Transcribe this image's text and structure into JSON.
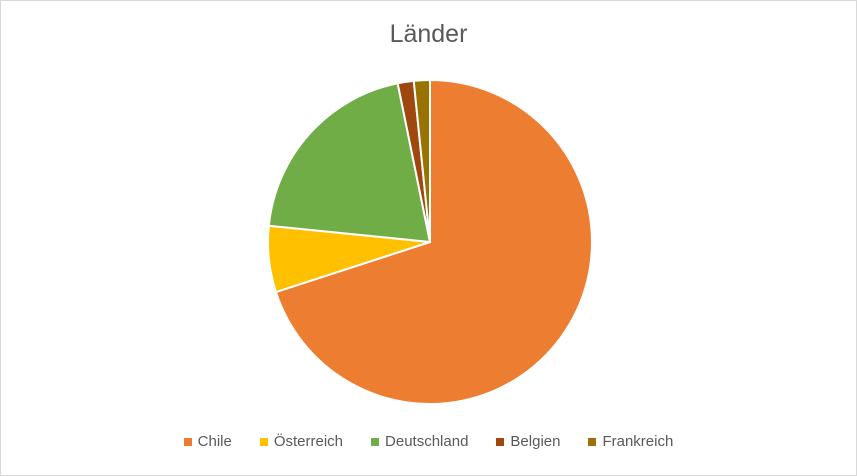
{
  "chart_data": {
    "type": "pie",
    "title": "Länder",
    "categories": [
      "Chile",
      "Österreich",
      "Deutschland",
      "Belgien",
      "Frankreich"
    ],
    "values": [
      70,
      6.6,
      20.2,
      1.6,
      1.6
    ],
    "colors": [
      "#ed7d31",
      "#ffc000",
      "#70ad47",
      "#9e480e",
      "#997300"
    ],
    "legend_position": "bottom"
  }
}
